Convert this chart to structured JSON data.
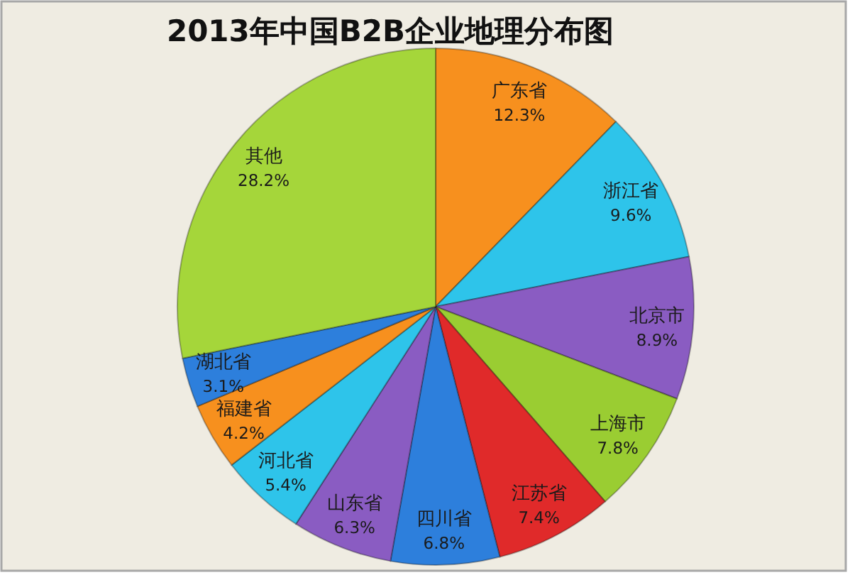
{
  "chart_data": {
    "type": "pie",
    "title": "2013年中国B2B企业地理分布图",
    "categories": [
      "广东省",
      "浙江省",
      "北京市",
      "上海市",
      "江苏省",
      "四川省",
      "山东省",
      "河北省",
      "福建省",
      "湖北省",
      "其他"
    ],
    "values": [
      12.3,
      9.6,
      8.9,
      7.8,
      7.4,
      6.8,
      6.3,
      5.4,
      4.2,
      3.1,
      28.2
    ],
    "colors": [
      "#f7901e",
      "#2ec4ea",
      "#8a5cc2",
      "#9acd32",
      "#e02a2a",
      "#2d7fdc",
      "#8a5cc2",
      "#2ec4ea",
      "#f7901e",
      "#2d7fdc",
      "#a5d63a"
    ],
    "value_labels": [
      "12.3%",
      "9.6%",
      "8.9%",
      "7.8%",
      "7.4%",
      "6.8%",
      "6.3%",
      "5.4%",
      "4.2%",
      "3.1%",
      "28.2%"
    ]
  }
}
